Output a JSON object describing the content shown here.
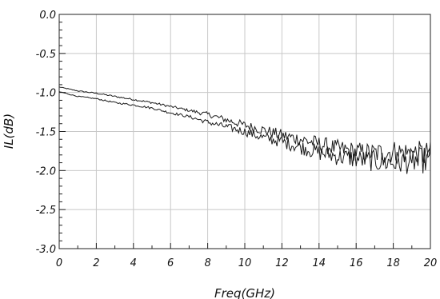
{
  "chart_data": {
    "type": "line",
    "title": "",
    "xlabel": "Freq(GHz)",
    "ylabel": "IL(dB)",
    "xlim": [
      0,
      20
    ],
    "ylim": [
      -3.0,
      0.0
    ],
    "grid": true,
    "x_ticks": [
      "0",
      "2",
      "4",
      "6",
      "8",
      "10",
      "12",
      "14",
      "16",
      "18",
      "20"
    ],
    "y_ticks": [
      "0.0",
      "-0.5",
      "-1.0",
      "-1.5",
      "-2.0",
      "-2.5",
      "-3.0"
    ],
    "x": [
      0,
      1,
      2,
      3,
      4,
      5,
      6,
      7,
      8,
      9,
      10,
      11,
      12,
      13,
      14,
      15,
      16,
      17,
      18,
      19,
      20
    ],
    "series": [
      {
        "values": [
          -0.93,
          -0.98,
          -1.01,
          -1.05,
          -1.09,
          -1.13,
          -1.18,
          -1.23,
          -1.28,
          -1.35,
          -1.42,
          -1.48,
          -1.55,
          -1.6,
          -1.66,
          -1.72,
          -1.76,
          -1.78,
          -1.76,
          -1.78,
          -1.8
        ]
      },
      {
        "values": [
          -0.99,
          -1.05,
          -1.08,
          -1.13,
          -1.16,
          -1.2,
          -1.26,
          -1.31,
          -1.38,
          -1.44,
          -1.5,
          -1.58,
          -1.63,
          -1.7,
          -1.77,
          -1.82,
          -1.85,
          -1.88,
          -1.9,
          -1.88,
          -1.86
        ]
      }
    ]
  }
}
